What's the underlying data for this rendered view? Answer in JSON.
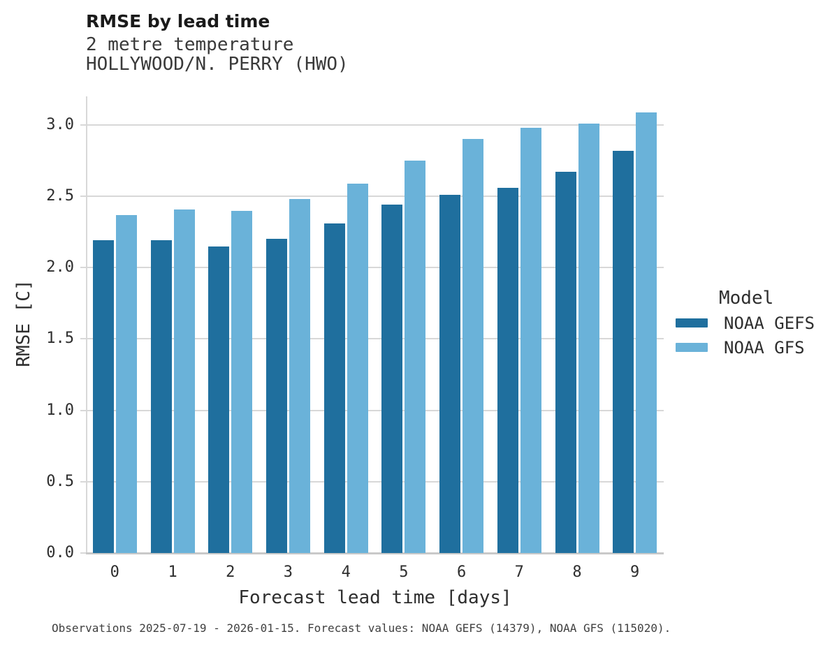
{
  "figure": {
    "title": "RMSE by lead time",
    "subtitle_line1": "2 metre temperature",
    "subtitle_line2": "HOLLYWOOD/N. PERRY (HWO)",
    "footnote": "Observations 2025-07-19 - 2026-01-15. Forecast values: NOAA GEFS (14379), NOAA GFS (115020)."
  },
  "legend": {
    "title": "Model",
    "entries": [
      {
        "label": "NOAA GEFS",
        "color": "#1f6f9e"
      },
      {
        "label": "NOAA GFS",
        "color": "#6ab2d9"
      }
    ]
  },
  "chart_data": {
    "type": "bar",
    "title": "RMSE by lead time",
    "subtitle": [
      "2 metre temperature",
      "HOLLYWOOD/N. PERRY (HWO)"
    ],
    "xlabel": "Forecast lead time [days]",
    "ylabel": "RMSE [C]",
    "categories": [
      "0",
      "1",
      "2",
      "3",
      "4",
      "5",
      "6",
      "7",
      "8",
      "9"
    ],
    "series": [
      {
        "name": "NOAA GEFS",
        "color": "#1f6f9e",
        "values": [
          2.19,
          2.19,
          2.15,
          2.2,
          2.31,
          2.44,
          2.51,
          2.56,
          2.67,
          2.82
        ]
      },
      {
        "name": "NOAA GFS",
        "color": "#6ab2d9",
        "values": [
          2.37,
          2.41,
          2.4,
          2.48,
          2.59,
          2.75,
          2.9,
          2.98,
          3.01,
          3.09
        ]
      }
    ],
    "ylim": [
      0,
      3.2
    ],
    "yticks": [
      "0.0",
      "0.5",
      "1.0",
      "1.5",
      "2.0",
      "2.5",
      "3.0"
    ],
    "grid": "horizontal",
    "legend_position": "right",
    "note": "Observations 2025-07-19 - 2026-01-15. Forecast values: NOAA GEFS (14379), NOAA GFS (115020)."
  }
}
